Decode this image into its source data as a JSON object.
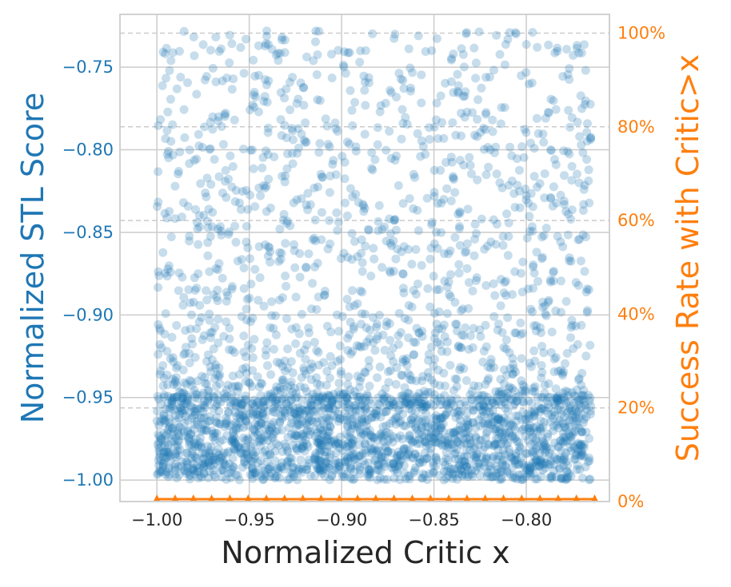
{
  "chart_data": {
    "type": "scatter",
    "xlabel": "Normalized Critic x",
    "ylabel_left": "Normalized STL Score",
    "ylabel_right": "Success Rate with Critic>x",
    "xlim": [
      -1.02,
      -0.755
    ],
    "ylim_left": [
      -1.013,
      -0.718
    ],
    "ylim_right": [
      0,
      1.04
    ],
    "x_ticks": [
      "−1.00",
      "−0.95",
      "−0.90",
      "−0.85",
      "−0.80"
    ],
    "x_tick_values": [
      -1.0,
      -0.95,
      -0.9,
      -0.85,
      -0.8
    ],
    "y_left_ticks": [
      "−1.00",
      "−0.95",
      "−0.90",
      "−0.85",
      "−0.80",
      "−0.75"
    ],
    "y_left_tick_values": [
      -1.0,
      -0.95,
      -0.9,
      -0.85,
      -0.8,
      -0.75
    ],
    "y_right_ticks": [
      "0%",
      "20%",
      "40%",
      "60%",
      "80%",
      "100%"
    ],
    "y_right_tick_values": [
      0,
      0.2,
      0.4,
      0.6,
      0.8,
      1.0
    ],
    "grid": true,
    "colors": {
      "scatter": "#1f77b4",
      "success_rate": "#ff7f0e",
      "grid": "#cccccc",
      "spine": "#cccccc",
      "dashed_ref": "#cccccc"
    },
    "series": [
      {
        "kind": "scatter",
        "axis": "left",
        "alpha": 0.25,
        "generation": {
          "count": 3200,
          "x_range": [
            -1.0,
            -0.765
          ],
          "y_min": -1.0,
          "y_max": -0.728,
          "note": "dense band between -1.00 and -0.95, thinning toward -0.73"
        }
      },
      {
        "kind": "line",
        "axis": "right",
        "marker": "triangle",
        "x_range": [
          -1.0,
          -0.763
        ],
        "n_markers": 25,
        "value": 0.0
      }
    ],
    "dashed_reference_lines_right": [
      0.2,
      0.6,
      0.8,
      1.0
    ]
  }
}
